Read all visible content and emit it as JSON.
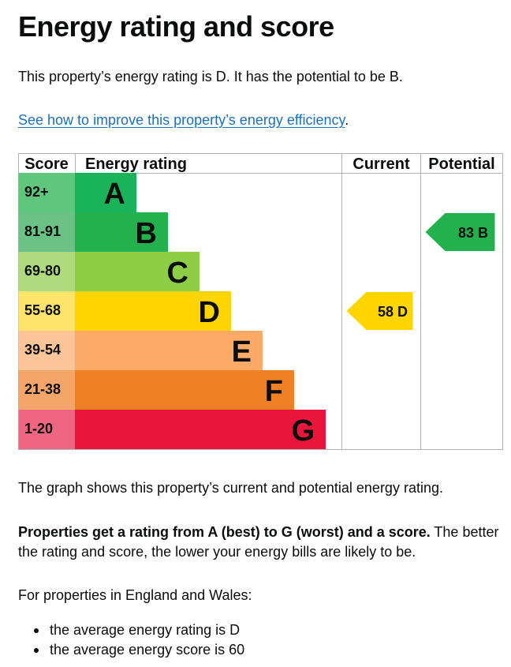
{
  "page": {
    "title": "Energy rating and score",
    "intro": "This property’s energy rating is D. It has the potential to be B.",
    "improve_link": "See how to improve this property’s energy efficiency",
    "improve_suffix": ".",
    "graph_note": "The graph shows this property’s current and potential energy rating.",
    "rating_scale_bold": "Properties get a rating from A (best) to G (worst) and a score.",
    "rating_scale_rest": " The better the rating and score, the lower your energy bills are likely to be.",
    "region_intro": "For properties in England and Wales:",
    "averages": [
      "the average energy rating is D",
      "the average energy score is 60"
    ]
  },
  "chart_data": {
    "type": "bar",
    "columns": [
      "Score",
      "Energy rating",
      "Current",
      "Potential"
    ],
    "bands": [
      {
        "letter": "A",
        "score": "92+",
        "color": "#19b459",
        "score_bg": "#5fc67e"
      },
      {
        "letter": "B",
        "score": "81-91",
        "color": "#22b14c",
        "score_bg": "#6cc186"
      },
      {
        "letter": "C",
        "score": "69-80",
        "color": "#8dce46",
        "score_bg": "#b0da7e"
      },
      {
        "letter": "D",
        "score": "55-68",
        "color": "#ffd500",
        "score_bg": "#fee46a"
      },
      {
        "letter": "E",
        "score": "39-54",
        "color": "#fcaa65",
        "score_bg": "#fcc499"
      },
      {
        "letter": "F",
        "score": "21-38",
        "color": "#ef8023",
        "score_bg": "#f3a56a"
      },
      {
        "letter": "G",
        "score": "1-20",
        "color": "#e9153b",
        "score_bg": "#ef6682"
      }
    ],
    "current": {
      "value": 58,
      "letter": "D",
      "color": "#ffd500"
    },
    "potential": {
      "value": 83,
      "letter": "B",
      "color": "#22b14c"
    }
  }
}
